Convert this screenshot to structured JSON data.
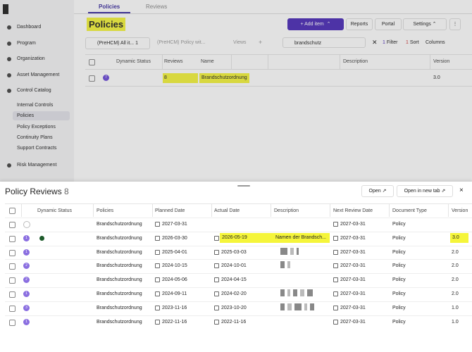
{
  "sidebar": {
    "items": [
      "Dashboard",
      "Program",
      "Organization",
      "Asset Management",
      "Control Catalog"
    ],
    "sub_items": [
      "Internal Controls",
      "Policies",
      "Policy Exceptions",
      "Continuity Plans",
      "Support Contracts"
    ],
    "after": [
      "Risk Management"
    ]
  },
  "tabs": [
    "Policies",
    "Reviews"
  ],
  "heading": "Policies",
  "buttons": {
    "add": "Add item",
    "reports": "Reports",
    "portal": "Portal",
    "settings": "Settings"
  },
  "views": {
    "view1": "(PreHCM) All it...",
    "view1_count": "1",
    "view2": "(PreHCM) Policy wit...",
    "views": "Views",
    "plus": "+"
  },
  "search": "brandschutz",
  "filter": {
    "count": "1",
    "label": "Filter"
  },
  "sort": {
    "count": "1",
    "label": "Sort"
  },
  "columns_button": "Columns",
  "main_table": {
    "headers": [
      "Dynamic Status",
      "Reviews",
      "Name",
      "Description",
      "Version"
    ],
    "row": {
      "badge": "7",
      "reviews": "8",
      "name": "Brandschutzordnung",
      "version": "3.0"
    }
  },
  "panel": {
    "title": "Policy Reviews",
    "count": "8",
    "open": "Open",
    "open_new_tab": "Open in new tab",
    "close": "×"
  },
  "table": {
    "headers": [
      "Dynamic Status",
      "Policies",
      "Planned Date",
      "Actual Date",
      "Description",
      "Next Review Date",
      "Document Type",
      "Version"
    ],
    "rows": [
      [
        null,
        "Brandschutzordnung",
        "2027-03-31",
        null,
        null,
        "2027-03-31",
        "Policy",
        null
      ],
      [
        "1",
        "Brandschutzordnung",
        "2026-03-30",
        "2026-05-19",
        "Namen der Brandsch...",
        "2027-03-31",
        "Policy",
        "3.0"
      ],
      [
        "1",
        "Brandschutzordnung",
        "2025-04-01",
        "2025-03-03",
        null,
        "2027-03-31",
        "Policy",
        "2.0"
      ],
      [
        "2",
        "Brandschutzordnung",
        "2024-10-15",
        "2024-10-01",
        null,
        "2027-03-31",
        "Policy",
        "2.0"
      ],
      [
        "2",
        "Brandschutzordnung",
        "2024-05-06",
        "2024-04-15",
        null,
        "2027-03-31",
        "Policy",
        "2.0"
      ],
      [
        "1",
        "Brandschutzordnung",
        "2024-09-11",
        "2024-02-20",
        null,
        "2027-03-31",
        "Policy",
        "2.0"
      ],
      [
        "3",
        "Brandschutzordnung",
        "2023-11-16",
        "2023-10-20",
        null,
        "2027-03-31",
        "Policy",
        "1.0"
      ],
      [
        "1",
        "Brandschutzordnung",
        "2022-11-16",
        "2022-11-16",
        null,
        "2027-03-31",
        "Policy",
        "1.0"
      ]
    ]
  }
}
